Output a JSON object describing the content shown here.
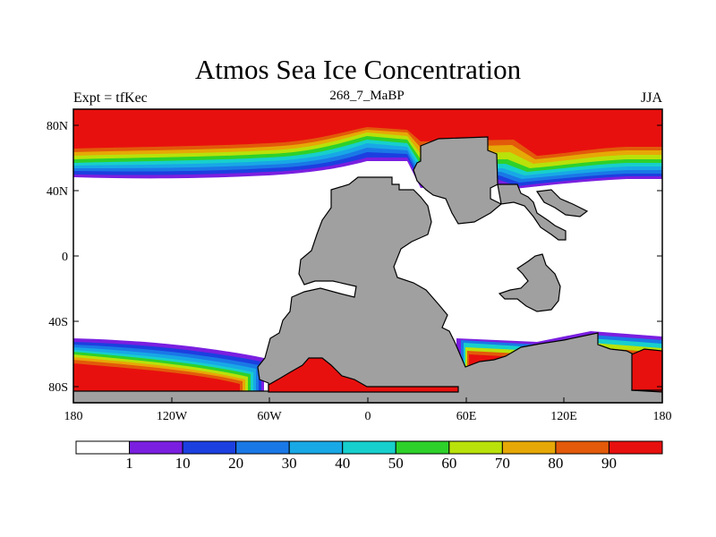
{
  "title": "Atmos Sea Ice Concentration",
  "left_label": "Expt = tfKec",
  "center_label": "268_7_MaBP",
  "right_label": "JJA",
  "lat_ticks": [
    "80N",
    "40N",
    "0",
    "40S",
    "80S"
  ],
  "lon_ticks": [
    "180",
    "120W",
    "60W",
    "0",
    "60E",
    "120E",
    "180"
  ],
  "colorbar": {
    "levels": [
      "1",
      "10",
      "20",
      "30",
      "40",
      "50",
      "60",
      "70",
      "80",
      "90"
    ],
    "colors": [
      "#ffffff",
      "#7a1fe0",
      "#1c3fe0",
      "#1a78e6",
      "#18a8e6",
      "#17cfcc",
      "#2ed12a",
      "#b9e10a",
      "#e6a806",
      "#e25a0a",
      "#e8100e"
    ]
  },
  "land_color": "#a0a0a0"
}
